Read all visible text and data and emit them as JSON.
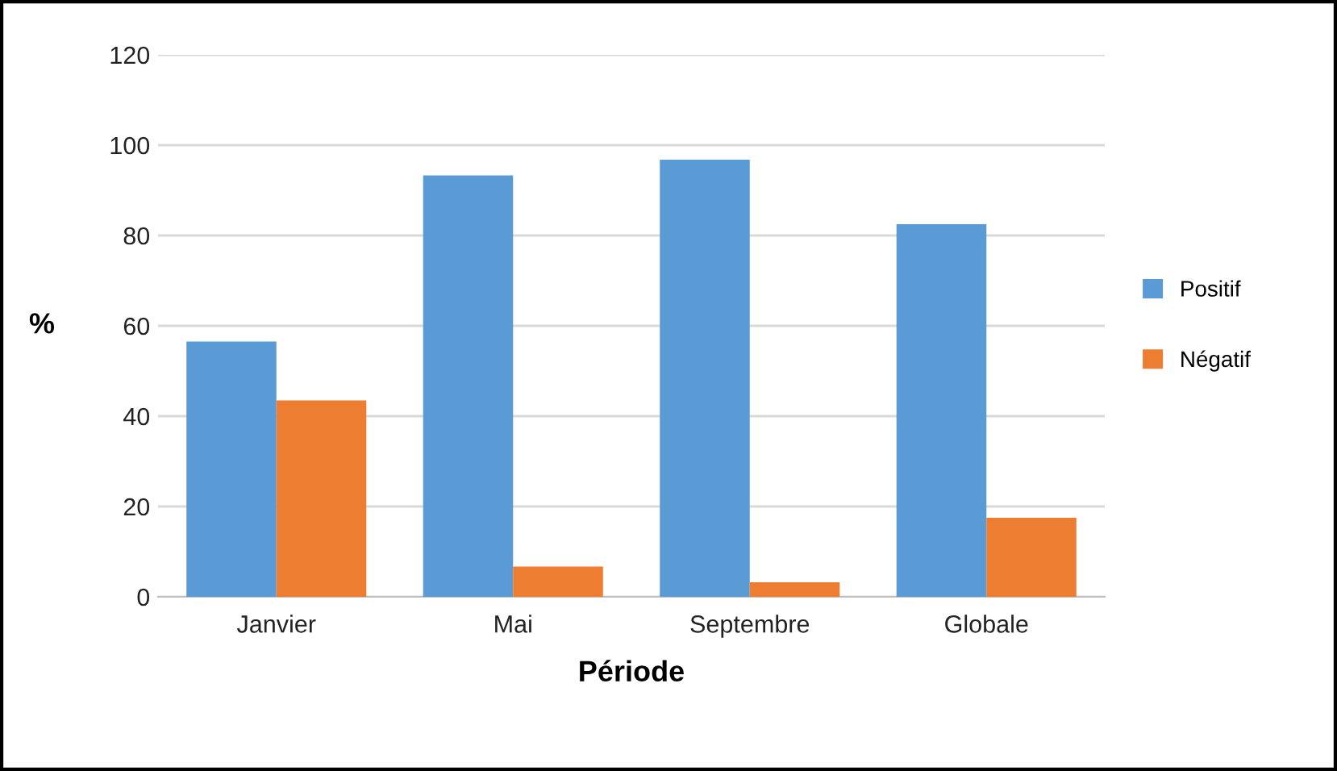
{
  "chart_data": {
    "type": "bar",
    "xlabel": "Période",
    "ylabel": "%",
    "categories": [
      "Janvier",
      "Mai",
      "Septembre",
      "Globale"
    ],
    "series": [
      {
        "name": "Positif",
        "color": "#5b9bd5",
        "values": [
          56.5,
          93.3,
          96.8,
          82.5
        ]
      },
      {
        "name": "Négatif",
        "color": "#ed7d31",
        "values": [
          43.5,
          6.7,
          3.2,
          17.5
        ]
      }
    ],
    "ylim": [
      0,
      120
    ],
    "yticks": [
      0,
      20,
      40,
      60,
      80,
      100,
      120
    ],
    "grid": "y",
    "legend": "right"
  }
}
